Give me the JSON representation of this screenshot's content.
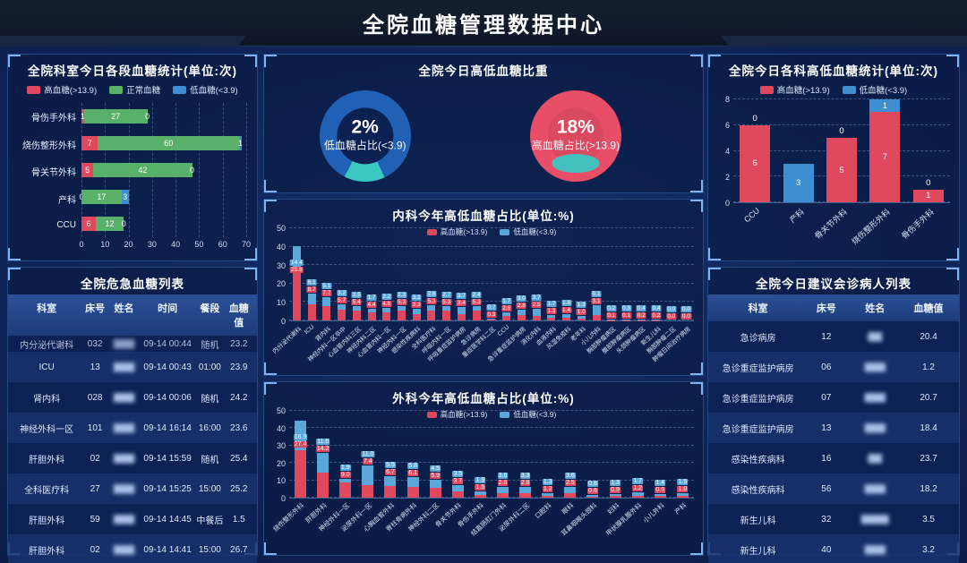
{
  "header": {
    "title": "全院血糖管理数据中心"
  },
  "colors": {
    "high": "#e0485e",
    "normal": "#58b06a",
    "low": "#3d8ed2",
    "low_chip": "#5ba7d9",
    "teal": "#3bc7c2",
    "panel_border": "#23477f"
  },
  "chart_data": [
    {
      "id": "dept_segments",
      "type": "bar",
      "variant": "horizontal-stacked",
      "title": "全院科室今日各段血糖统计(单位:次)",
      "categories": [
        "骨伤手外科",
        "烧伤整形外科",
        "骨关节外科",
        "产科",
        "CCU"
      ],
      "series": [
        {
          "name": "高血糖(>13.9)",
          "color": "#e0485e",
          "values": [
            1,
            7,
            5,
            0,
            6
          ]
        },
        {
          "name": "正常血糖",
          "color": "#58b06a",
          "values": [
            27,
            60,
            42,
            17,
            12
          ]
        },
        {
          "name": "低血糖(<3.9)",
          "color": "#3d8ed2",
          "values": [
            0,
            1,
            0,
            3,
            0
          ]
        }
      ],
      "xlim": [
        0,
        70
      ],
      "xticks": [
        0,
        10,
        20,
        30,
        40,
        50,
        60,
        70
      ],
      "grid": "dashed-vertical",
      "legend_position": "top"
    },
    {
      "id": "today_ratio",
      "type": "pie",
      "variant": "donut-pair",
      "title": "全院今日高低血糖比重",
      "donuts": [
        {
          "value": "2%",
          "label": "低血糖占比(<3.9)",
          "ring_color": "#2161b5",
          "accent_color": "#3bc7c2"
        },
        {
          "value": "18%",
          "label": "高血糖占比(>13.9)",
          "ring_color": "#e84f66",
          "accent_color": "#3bc7c2"
        }
      ]
    },
    {
      "id": "dept_highlow",
      "type": "bar",
      "variant": "vertical-stacked",
      "title": "全院今日各科高低血糖统计(单位:次)",
      "categories": [
        "CCU",
        "产科",
        "骨关节外科",
        "烧伤整形外科",
        "骨伤手外科"
      ],
      "series": [
        {
          "name": "高血糖(>13.9)",
          "color": "#e0485e",
          "values": [
            6,
            0,
            5,
            7,
            1
          ]
        },
        {
          "name": "低血糖(<3.9)",
          "color": "#3d8ed2",
          "values": [
            0,
            3,
            0,
            1,
            0
          ]
        }
      ],
      "ylim": [
        0,
        8
      ],
      "yticks": [
        0,
        2,
        4,
        6,
        8
      ],
      "grid": "dashed-horizontal",
      "legend_position": "top"
    },
    {
      "id": "internal_medicine_year",
      "type": "bar",
      "variant": "vertical-stacked",
      "title": "内科今年高低血糖占比(单位:%)",
      "categories": [
        "内分泌代谢科",
        "ICU",
        "肾内科",
        "神经内科一区卒中",
        "心血管内科三区",
        "神经内科二区",
        "心血管内科一区",
        "神经内科一区",
        "感染性疾病科",
        "全科医疗科",
        "呼吸内科一区",
        "呼吸重症监护病房",
        "急诊病房",
        "重症医学科二区",
        "CCU",
        "急诊重症监护病房",
        "消化内科",
        "血液内科",
        "风湿免疫科",
        "老年科",
        "小儿内科",
        "胸部肿瘤病区",
        "腹部肿瘤病区",
        "头颈肿瘤病区",
        "新生儿科",
        "胸部肿瘤二区",
        "肿瘤日间治疗病房"
      ],
      "series": [
        {
          "name": "高血糖(>13.9)",
          "color": "#e0485e",
          "values": [
            25.8,
            8.7,
            7.7,
            5.7,
            5.4,
            4.4,
            4.6,
            5.3,
            3.3,
            5.3,
            5.3,
            3.4,
            5.3,
            0.3,
            2.6,
            2.8,
            2.5,
            1.3,
            1.4,
            1.0,
            3.1,
            0.1,
            0.1,
            0.2,
            0.2,
            0.0,
            0.0
          ]
        },
        {
          "name": "低血糖(<3.9)",
          "color": "#5ba7d9",
          "values": [
            14.4,
            6.1,
            5.1,
            3.2,
            2.5,
            1.7,
            2.2,
            2.3,
            3.1,
            2.8,
            2.7,
            3.7,
            2.4,
            0.7,
            1.7,
            3.0,
            3.7,
            1.7,
            1.8,
            1.3,
            5.1,
            0.2,
            0.3,
            0.4,
            0.4,
            0.0,
            0.0
          ]
        }
      ],
      "ylim": [
        0,
        50
      ],
      "yticks": [
        0,
        10,
        20,
        30,
        40,
        50
      ],
      "grid": "dashed-horizontal",
      "legend_position": "top-inside"
    },
    {
      "id": "surgery_year",
      "type": "bar",
      "variant": "vertical-stacked",
      "title": "外科今年高低血糖占比(单位:%)",
      "categories": [
        "烧伤整形外科",
        "肝胆外科",
        "神经外科一区",
        "泌尿外科一区",
        "心胸血管外科",
        "脊柱骨病外科",
        "神经外科二区",
        "骨关节外科",
        "骨伤手外科",
        "结直肠肛门外科",
        "泌尿外科二区",
        "口腔科",
        "眼科",
        "耳鼻咽喉头颈科",
        "妇科",
        "甲状腺乳腺外科",
        "小儿外科",
        "产科"
      ],
      "series": [
        {
          "name": "高血糖(>13.9)",
          "color": "#e0485e",
          "values": [
            27.4,
            14.2,
            9.0,
            7.4,
            6.7,
            6.1,
            5.9,
            3.7,
            1.5,
            2.8,
            2.8,
            1.2,
            2.5,
            0.6,
            0.9,
            1.2,
            0.9,
            1.0
          ]
        },
        {
          "name": "低血糖(<3.9)",
          "color": "#5ba7d9",
          "values": [
            16.9,
            11.6,
            1.9,
            11.0,
            5.5,
            5.8,
            4.5,
            3.5,
            1.9,
            3.6,
            3.3,
            1.3,
            3.6,
            0.8,
            1.3,
            1.7,
            1.4,
            1.5
          ]
        }
      ],
      "ylim": [
        0,
        50
      ],
      "yticks": [
        0,
        10,
        20,
        30,
        40,
        50
      ],
      "grid": "dashed-horizontal",
      "legend_position": "top-inside"
    }
  ],
  "tables": {
    "critical": {
      "title": "全院危急血糖列表",
      "headers": [
        "科室",
        "床号",
        "姓名",
        "时间",
        "餐段",
        "血糖值"
      ],
      "blur_col": 2,
      "rows": [
        [
          "内分泌代谢科",
          "032",
          "▇▇▇",
          "09-14 00:44",
          "随机",
          "23.2"
        ],
        [
          "ICU",
          "13",
          "▇▇▇",
          "09-14 00:43",
          "01:00",
          "23.9"
        ],
        [
          "肾内科",
          "028",
          "▇▇▇",
          "09-14 00:06",
          "随机",
          "24.2"
        ],
        [
          "神经外科一区",
          "101",
          "▇▇▇",
          "09-14 16:14",
          "16:00",
          "23.6"
        ],
        [
          "肝胆外科",
          "02",
          "▇▇▇",
          "09-14 15:59",
          "随机",
          "25.4"
        ],
        [
          "全科医疗科",
          "27",
          "▇▇▇",
          "09-14 15:25",
          "15:00",
          "25.2"
        ],
        [
          "肝胆外科",
          "59",
          "▇▇▇",
          "09-14 14:45",
          "中餐后",
          "1.5"
        ],
        [
          "肝胆外科",
          "02",
          "▇▇▇",
          "09-14 14:41",
          "15:00",
          "26.7"
        ]
      ]
    },
    "consult": {
      "title": "全院今日建议会诊病人列表",
      "headers": [
        "科室",
        "床号",
        "姓名",
        "血糖值"
      ],
      "blur_col": 2,
      "rows": [
        [
          "急诊病房",
          "12",
          "▇▇",
          "20.4"
        ],
        [
          "急诊重症监护病房",
          "06",
          "▇▇▇",
          "1.2"
        ],
        [
          "急诊重症监护病房",
          "07",
          "▇▇▇",
          "20.7"
        ],
        [
          "急诊重症监护病房",
          "13",
          "▇▇▇",
          "18.4"
        ],
        [
          "感染性疾病科",
          "16",
          "▇▇",
          "23.7"
        ],
        [
          "感染性疾病科",
          "56",
          "▇▇▇",
          "18.2"
        ],
        [
          "新生儿科",
          "32",
          "▇▇▇▇",
          "3.5"
        ],
        [
          "新生儿科",
          "40",
          "▇▇▇",
          "3.2"
        ]
      ]
    }
  }
}
